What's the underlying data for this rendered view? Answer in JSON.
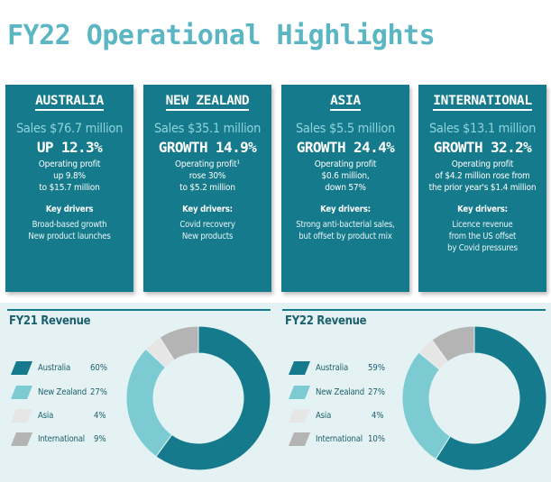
{
  "title": "FY22 Operational Highlights",
  "regions": [
    {
      "name": "AUSTRALIA",
      "sales": "Sales $76.7 million",
      "growth": "UP 12.3%",
      "profit": "Operating profit\nup 9.8%\nto $15.7 million",
      "drivers_heading": "Key drivers",
      "drivers": "Broad-based growth\nNew product launches"
    },
    {
      "name": "NEW ZEALAND",
      "sales": "Sales $35.1 million",
      "growth": "GROWTH 14.9%",
      "profit": "Operating profit¹\nrose 30%\nto $5.2 million",
      "drivers_heading": "Key drivers:",
      "drivers": "Covid recovery\nNew products"
    },
    {
      "name": "ASIA",
      "sales": "Sales $5.5 million",
      "growth": "GROWTH 24.4%",
      "profit": "Operating profit\n$0.6 million,\ndown 57%",
      "drivers_heading": "Key drivers:",
      "drivers": "Strong anti-bacterial sales,\nbut offset by product mix"
    },
    {
      "name": "INTERNATIONAL",
      "sales": "Sales $13.1 million",
      "growth": "GROWTH 32.2%",
      "profit": "Operating profit\nof $4.2 million rose from\nthe prior year's $1.4 million",
      "drivers_heading": "Key drivers:",
      "drivers": "Licence revenue\nfrom the US offset\nby Covid pressures"
    }
  ],
  "colors": {
    "panel": "#157a8b",
    "title": "#5bb6c4",
    "australia": "#157a8b",
    "new_zealand": "#7ccbd3",
    "asia": "#e6e6e6",
    "international": "#b4b4b4"
  },
  "chart_data": [
    {
      "type": "pie",
      "donut": true,
      "title": "FY21 Revenue",
      "categories": [
        "Australia",
        "New Zealand",
        "Asia",
        "International"
      ],
      "values": [
        60,
        27,
        4,
        9
      ],
      "value_labels": [
        "60%",
        "27%",
        "4%",
        "9%"
      ],
      "legend": "left"
    },
    {
      "type": "pie",
      "donut": true,
      "title": "FY22 Revenue",
      "categories": [
        "Australia",
        "New Zealand",
        "Asia",
        "International"
      ],
      "values": [
        59,
        27,
        4,
        10
      ],
      "value_labels": [
        "59%",
        "27%",
        "4%",
        "10%"
      ],
      "legend": "left"
    }
  ]
}
